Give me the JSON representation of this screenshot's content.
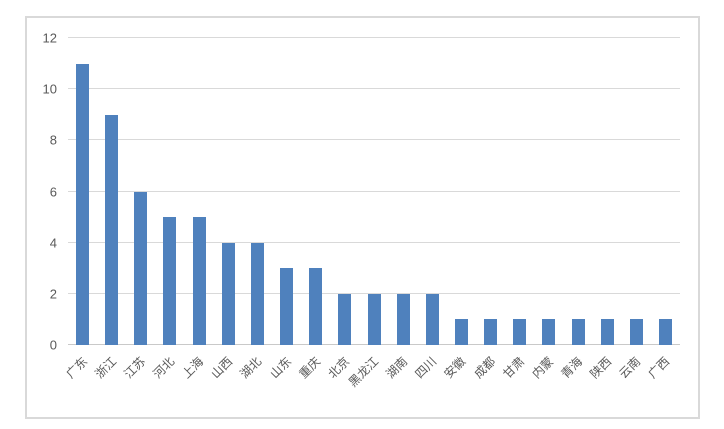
{
  "chart_data": {
    "type": "bar",
    "title": "",
    "xlabel": "",
    "ylabel": "",
    "categories": [
      "广东",
      "浙江",
      "江苏",
      "河北",
      "上海",
      "山西",
      "湖北",
      "山东",
      "重庆",
      "北京",
      "黑龙江",
      "湖南",
      "四川",
      "安徽",
      "成都",
      "甘肃",
      "内蒙",
      "青海",
      "陕西",
      "云南",
      "广西"
    ],
    "values": [
      11,
      9,
      6,
      5,
      5,
      4,
      4,
      3,
      3,
      2,
      2,
      2,
      2,
      1,
      1,
      1,
      1,
      1,
      1,
      1,
      1
    ],
    "ylim": [
      0,
      12
    ],
    "yticks": [
      0,
      2,
      4,
      6,
      8,
      10,
      12
    ],
    "grid": "horizontal",
    "legend": "none",
    "colors": {
      "bar": "#4f81bd",
      "gridline": "#d9d9d9",
      "axis_line": "#c9c9c9",
      "text": "#595959",
      "frame_border": "#d9d9d9",
      "background": "#ffffff"
    }
  }
}
